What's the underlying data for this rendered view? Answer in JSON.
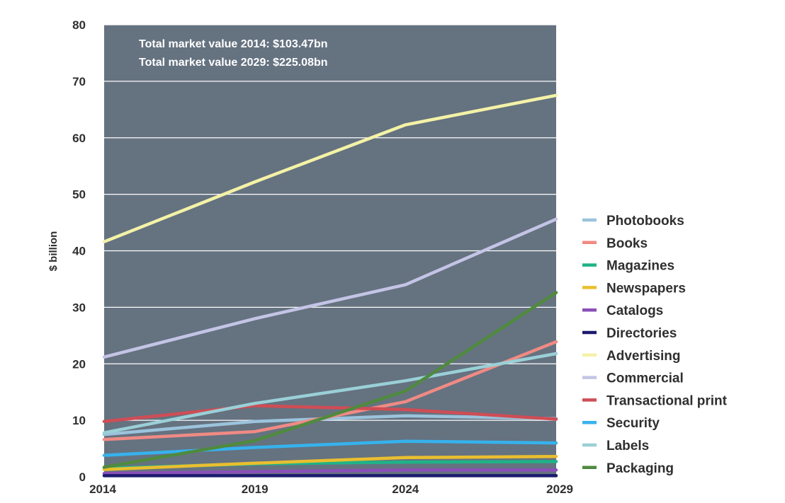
{
  "chart_data": {
    "type": "line",
    "title": "",
    "xlabel": "",
    "ylabel": "$ billion",
    "x": [
      "2014",
      "2019",
      "2024",
      "2029"
    ],
    "y_ticks": [
      "0",
      "10",
      "20",
      "30",
      "40",
      "50",
      "60",
      "70",
      "80"
    ],
    "ylim": [
      0,
      80
    ],
    "grid": "horizontal",
    "legend_position": "right",
    "background_color": "#657280",
    "annotations": [
      "Total market value 2014: $103.47bn",
      "Total market value 2029: $225.08bn"
    ],
    "series": [
      {
        "name": "Photobooks",
        "color": "#9cc3dc",
        "values": [
          7.5,
          9.8,
          10.8,
          10.3
        ]
      },
      {
        "name": "Books",
        "color": "#f08a84",
        "values": [
          6.6,
          8.0,
          13.3,
          23.9
        ]
      },
      {
        "name": "Magazines",
        "color": "#1fb387",
        "values": [
          1.5,
          2.3,
          2.6,
          2.7
        ]
      },
      {
        "name": "Newspapers",
        "color": "#e9bf2f",
        "values": [
          1.3,
          2.4,
          3.4,
          3.6
        ]
      },
      {
        "name": "Catalogs",
        "color": "#8a4fb8",
        "values": [
          0.6,
          0.9,
          1.2,
          1.2
        ]
      },
      {
        "name": "Directories",
        "color": "#1c1a6e",
        "values": [
          0.2,
          0.2,
          0.2,
          0.2
        ]
      },
      {
        "name": "Advertising",
        "color": "#f4f2a6",
        "values": [
          41.6,
          52.2,
          62.3,
          67.5
        ]
      },
      {
        "name": "Commercial",
        "color": "#c4c4e6",
        "values": [
          21.2,
          28.0,
          34.0,
          45.6
        ]
      },
      {
        "name": "Transactional print",
        "color": "#cf4d55",
        "values": [
          9.8,
          12.6,
          11.9,
          10.2
        ]
      },
      {
        "name": "Security",
        "color": "#36b2ec",
        "values": [
          3.8,
          5.2,
          6.3,
          6.0
        ]
      },
      {
        "name": "Labels",
        "color": "#9ad0d7",
        "values": [
          7.8,
          13.0,
          17.0,
          21.8
        ]
      },
      {
        "name": "Packaging",
        "color": "#4f8a3e",
        "values": [
          1.7,
          6.4,
          15.2,
          32.6
        ]
      }
    ]
  }
}
